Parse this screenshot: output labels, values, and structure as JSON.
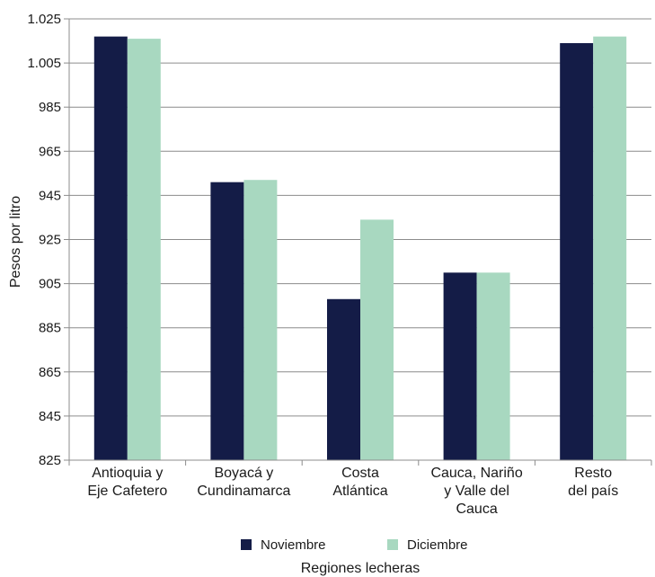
{
  "chart_data": {
    "type": "bar",
    "categories": [
      [
        "Antioquia y",
        "Eje Cafetero"
      ],
      [
        "Boyacá y",
        "Cundinamarca"
      ],
      [
        "Costa",
        "Atlántica"
      ],
      [
        "Cauca, Nariño",
        "y Valle del",
        "Cauca"
      ],
      [
        "Resto",
        "del país"
      ]
    ],
    "series": [
      {
        "name": "Noviembre",
        "color": "#141c47",
        "values": [
          1017,
          951,
          898,
          910,
          1014
        ]
      },
      {
        "name": "Diciembre",
        "color": "#a8d8c0",
        "values": [
          1016,
          952,
          934,
          910,
          1017
        ]
      }
    ],
    "yticks": [
      "825",
      "845",
      "865",
      "885",
      "905",
      "925",
      "945",
      "965",
      "985",
      "1.005",
      "1.025"
    ],
    "ylim": [
      825,
      1025
    ],
    "ytick_step": 20,
    "ylabel": "Pesos por litro",
    "xlabel": "Regiones lecheras",
    "grid": true,
    "legend_position": "bottom"
  }
}
